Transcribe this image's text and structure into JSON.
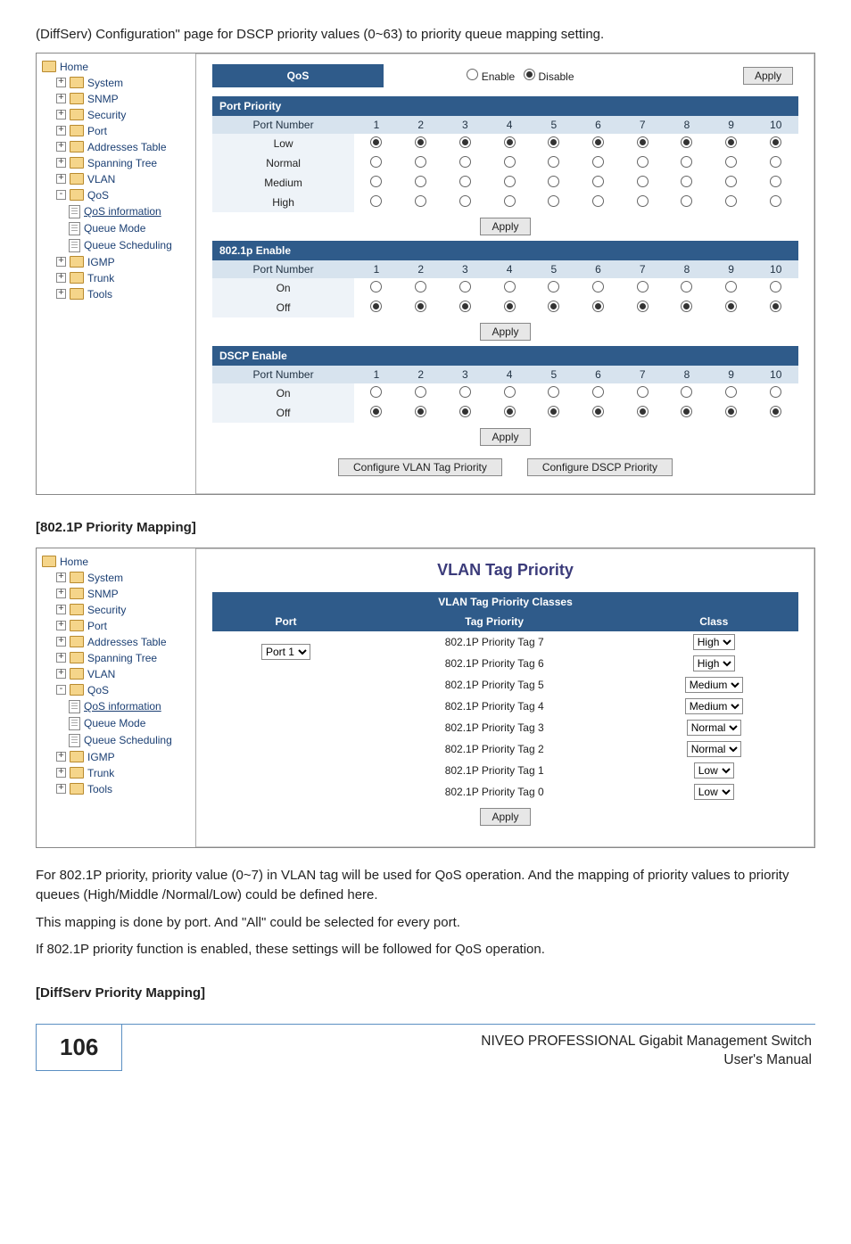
{
  "intro_text": "(DiffServ) Configuration\" page for DSCP priority values (0~63) to priority queue mapping setting.",
  "qos_panel": {
    "top_row": {
      "label": "QoS",
      "enable": "Enable",
      "disable": "Disable",
      "apply": "Apply"
    },
    "sections": [
      {
        "title": "Port Priority",
        "headers": [
          "Port Number",
          "1",
          "2",
          "3",
          "4",
          "5",
          "6",
          "7",
          "8",
          "9",
          "10"
        ],
        "rows": [
          {
            "label": "Low",
            "sel": [
              1,
              1,
              1,
              1,
              1,
              1,
              1,
              1,
              1,
              1
            ]
          },
          {
            "label": "Normal",
            "sel": [
              0,
              0,
              0,
              0,
              0,
              0,
              0,
              0,
              0,
              0
            ]
          },
          {
            "label": "Medium",
            "sel": [
              0,
              0,
              0,
              0,
              0,
              0,
              0,
              0,
              0,
              0
            ]
          },
          {
            "label": "High",
            "sel": [
              0,
              0,
              0,
              0,
              0,
              0,
              0,
              0,
              0,
              0
            ]
          }
        ],
        "apply": "Apply"
      },
      {
        "title": "802.1p Enable",
        "headers": [
          "Port Number",
          "1",
          "2",
          "3",
          "4",
          "5",
          "6",
          "7",
          "8",
          "9",
          "10"
        ],
        "rows": [
          {
            "label": "On",
            "sel": [
              0,
              0,
              0,
              0,
              0,
              0,
              0,
              0,
              0,
              0
            ]
          },
          {
            "label": "Off",
            "sel": [
              1,
              1,
              1,
              1,
              1,
              1,
              1,
              1,
              1,
              1
            ]
          }
        ],
        "apply": "Apply"
      },
      {
        "title": "DSCP Enable",
        "headers": [
          "Port Number",
          "1",
          "2",
          "3",
          "4",
          "5",
          "6",
          "7",
          "8",
          "9",
          "10"
        ],
        "rows": [
          {
            "label": "On",
            "sel": [
              0,
              0,
              0,
              0,
              0,
              0,
              0,
              0,
              0,
              0
            ]
          },
          {
            "label": "Off",
            "sel": [
              1,
              1,
              1,
              1,
              1,
              1,
              1,
              1,
              1,
              1
            ]
          }
        ],
        "apply": "Apply"
      }
    ],
    "cfg_buttons": [
      "Configure VLAN Tag Priority",
      "Configure DSCP Priority"
    ]
  },
  "tree_qos": [
    {
      "t": "home",
      "label": "Home"
    },
    {
      "t": "folder",
      "exp": "+",
      "label": "System"
    },
    {
      "t": "folder",
      "exp": "+",
      "label": "SNMP"
    },
    {
      "t": "folder",
      "exp": "+",
      "label": "Security"
    },
    {
      "t": "folder",
      "exp": "+",
      "label": "Port"
    },
    {
      "t": "folder",
      "exp": "+",
      "label": "Addresses Table"
    },
    {
      "t": "folder",
      "exp": "+",
      "label": "Spanning Tree"
    },
    {
      "t": "folder",
      "exp": "+",
      "label": "VLAN"
    },
    {
      "t": "folder",
      "exp": "-",
      "label": "QoS"
    },
    {
      "t": "leaf",
      "label": "QoS information",
      "link": true
    },
    {
      "t": "leaf",
      "label": "Queue Mode"
    },
    {
      "t": "leaf",
      "label": "Queue Scheduling"
    },
    {
      "t": "folder",
      "exp": "+",
      "label": "IGMP"
    },
    {
      "t": "folder",
      "exp": "+",
      "label": "Trunk"
    },
    {
      "t": "folder",
      "exp": "+",
      "label": "Tools"
    }
  ],
  "heading_8021p": "[802.1P Priority Mapping]",
  "vlan_panel": {
    "title": "VLAN Tag Priority",
    "sub_header": "VLAN Tag Priority Classes",
    "cols": [
      "Port",
      "Tag Priority",
      "Class"
    ],
    "port_value": "Port 1",
    "rows": [
      {
        "tag": "802.1P Priority Tag 7",
        "cls": "High"
      },
      {
        "tag": "802.1P Priority Tag 6",
        "cls": "High"
      },
      {
        "tag": "802.1P Priority Tag 5",
        "cls": "Medium"
      },
      {
        "tag": "802.1P Priority Tag 4",
        "cls": "Medium"
      },
      {
        "tag": "802.1P Priority Tag 3",
        "cls": "Normal"
      },
      {
        "tag": "802.1P Priority Tag 2",
        "cls": "Normal"
      },
      {
        "tag": "802.1P Priority Tag 1",
        "cls": "Low"
      },
      {
        "tag": "802.1P Priority Tag 0",
        "cls": "Low"
      }
    ],
    "apply": "Apply"
  },
  "body_text": [
    "For 802.1P priority, priority value (0~7) in VLAN tag will be used for QoS operation.   And the mapping of priority values to priority queues (High/Middle /Normal/Low) could be defined here.",
    "This mapping is done by port.  And \"All\" could be selected for every port.",
    "If 802.1P priority function is enabled, these settings will be followed for QoS operation."
  ],
  "heading_diffserv": "[DiffServ Priority Mapping]",
  "footer": {
    "page": "106",
    "line1": "NIVEO PROFESSIONAL Gigabit Management Switch",
    "line2": "User's Manual"
  }
}
